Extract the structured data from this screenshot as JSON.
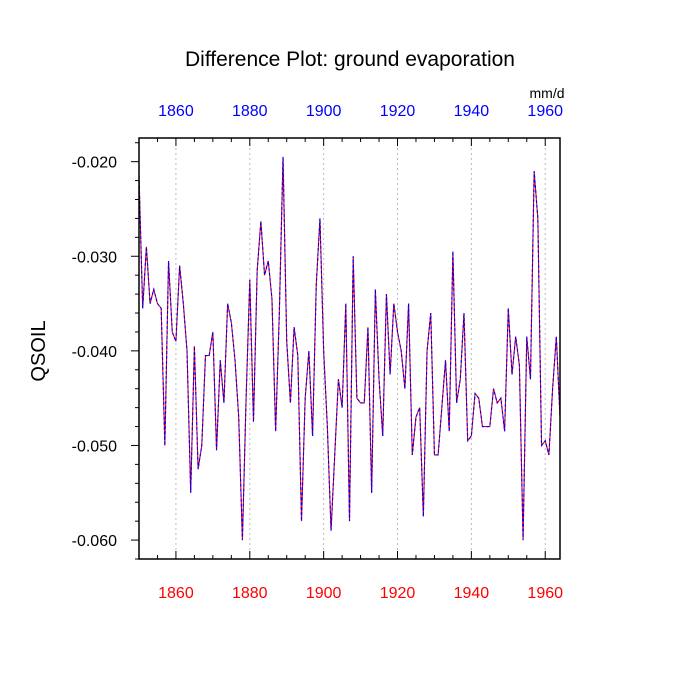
{
  "chart_data": {
    "type": "line",
    "title": "Difference Plot: ground evaporation",
    "units": "mm/d",
    "ylabel": "QSOIL",
    "xlim": [
      1850,
      1964
    ],
    "ylim": [
      -0.062,
      -0.0175
    ],
    "x_ticks": [
      1860,
      1880,
      1900,
      1920,
      1940,
      1960
    ],
    "x_tick_labels": [
      "1860",
      "1880",
      "1900",
      "1920",
      "1940",
      "1960"
    ],
    "y_ticks": [
      -0.06,
      -0.05,
      -0.04,
      -0.03,
      -0.02
    ],
    "y_tick_labels": [
      "-0.060",
      "-0.050",
      "-0.040",
      "-0.030",
      "-0.020"
    ],
    "grid_x": true,
    "grid_y": false,
    "colors": {
      "series_a": "#ff0000",
      "series_b": "#0000ff",
      "top_ticks": "#0000ff",
      "bottom_ticks": "#ff0000",
      "grid": "#bbbbbb"
    },
    "series": [
      {
        "x": [
          1850,
          1851,
          1852,
          1853,
          1854,
          1855,
          1856,
          1857,
          1858,
          1859,
          1860,
          1861,
          1862,
          1863,
          1864,
          1865,
          1866,
          1867,
          1868,
          1869,
          1870,
          1871,
          1872,
          1873,
          1874,
          1875,
          1876,
          1877,
          1878,
          1879,
          1880,
          1881,
          1882,
          1883,
          1884,
          1885,
          1886,
          1887,
          1888,
          1889,
          1890,
          1891,
          1892,
          1893,
          1894,
          1895,
          1896,
          1897,
          1898,
          1899,
          1900,
          1901,
          1902,
          1903,
          1904,
          1905,
          1906,
          1907,
          1908,
          1909,
          1910,
          1911,
          1912,
          1913,
          1914,
          1915,
          1916,
          1917,
          1918,
          1919,
          1920,
          1921,
          1922,
          1923,
          1924,
          1925,
          1926,
          1927,
          1928,
          1929,
          1930,
          1931,
          1932,
          1933,
          1934,
          1935,
          1936,
          1937,
          1938,
          1939,
          1940,
          1941,
          1942,
          1943,
          1944,
          1945,
          1946,
          1947,
          1948,
          1949,
          1950,
          1951,
          1952,
          1953,
          1954,
          1955,
          1956,
          1957,
          1958,
          1959,
          1960,
          1961,
          1962,
          1963,
          1964
        ],
        "y": [
          -0.0215,
          -0.0355,
          -0.029,
          -0.035,
          -0.0335,
          -0.035,
          -0.0355,
          -0.05,
          -0.0305,
          -0.038,
          -0.039,
          -0.031,
          -0.035,
          -0.04,
          -0.055,
          -0.0395,
          -0.0525,
          -0.05,
          -0.0405,
          -0.0405,
          -0.038,
          -0.0505,
          -0.041,
          -0.0455,
          -0.035,
          -0.037,
          -0.041,
          -0.047,
          -0.06,
          -0.045,
          -0.0325,
          -0.0475,
          -0.0315,
          -0.0263,
          -0.032,
          -0.0305,
          -0.0345,
          -0.0485,
          -0.036,
          -0.0195,
          -0.039,
          -0.0455,
          -0.0375,
          -0.0405,
          -0.058,
          -0.045,
          -0.04,
          -0.049,
          -0.033,
          -0.026,
          -0.04,
          -0.048,
          -0.059,
          -0.051,
          -0.043,
          -0.046,
          -0.035,
          -0.058,
          -0.03,
          -0.045,
          -0.0455,
          -0.0455,
          -0.0375,
          -0.055,
          -0.0335,
          -0.043,
          -0.049,
          -0.034,
          -0.0425,
          -0.035,
          -0.038,
          -0.04,
          -0.044,
          -0.035,
          -0.051,
          -0.047,
          -0.046,
          -0.0575,
          -0.04,
          -0.036,
          -0.051,
          -0.051,
          -0.046,
          -0.041,
          -0.0485,
          -0.0295,
          -0.0455,
          -0.043,
          -0.036,
          -0.0495,
          -0.049,
          -0.0445,
          -0.045,
          -0.048,
          -0.048,
          -0.048,
          -0.044,
          -0.0455,
          -0.045,
          -0.0485,
          -0.0355,
          -0.0425,
          -0.0385,
          -0.0415,
          -0.06,
          -0.0385,
          -0.043,
          -0.021,
          -0.026,
          -0.05,
          -0.0495,
          -0.051,
          -0.044,
          -0.0385,
          -0.047
        ]
      },
      {
        "x": [
          1850,
          1851,
          1852,
          1853,
          1854,
          1855,
          1856,
          1857,
          1858,
          1859,
          1860,
          1861,
          1862,
          1863,
          1864,
          1865,
          1866,
          1867,
          1868,
          1869,
          1870,
          1871,
          1872,
          1873,
          1874,
          1875,
          1876,
          1877,
          1878,
          1879,
          1880,
          1881,
          1882,
          1883,
          1884,
          1885,
          1886,
          1887,
          1888,
          1889,
          1890,
          1891,
          1892,
          1893,
          1894,
          1895,
          1896,
          1897,
          1898,
          1899,
          1900,
          1901,
          1902,
          1903,
          1904,
          1905,
          1906,
          1907,
          1908,
          1909,
          1910,
          1911,
          1912,
          1913,
          1914,
          1915,
          1916,
          1917,
          1918,
          1919,
          1920,
          1921,
          1922,
          1923,
          1924,
          1925,
          1926,
          1927,
          1928,
          1929,
          1930,
          1931,
          1932,
          1933,
          1934,
          1935,
          1936,
          1937,
          1938,
          1939,
          1940,
          1941,
          1942,
          1943,
          1944,
          1945,
          1946,
          1947,
          1948,
          1949,
          1950,
          1951,
          1952,
          1953,
          1954,
          1955,
          1956,
          1957,
          1958,
          1959,
          1960,
          1961,
          1962,
          1963,
          1964
        ],
        "y": [
          -0.0215,
          -0.0355,
          -0.029,
          -0.035,
          -0.0335,
          -0.035,
          -0.0355,
          -0.05,
          -0.0305,
          -0.038,
          -0.039,
          -0.031,
          -0.035,
          -0.04,
          -0.055,
          -0.0395,
          -0.0525,
          -0.05,
          -0.0405,
          -0.0405,
          -0.038,
          -0.0505,
          -0.041,
          -0.0455,
          -0.035,
          -0.037,
          -0.041,
          -0.047,
          -0.06,
          -0.045,
          -0.0325,
          -0.0475,
          -0.0315,
          -0.0263,
          -0.032,
          -0.0305,
          -0.0345,
          -0.0485,
          -0.036,
          -0.0195,
          -0.039,
          -0.0455,
          -0.0375,
          -0.0405,
          -0.058,
          -0.045,
          -0.04,
          -0.049,
          -0.033,
          -0.026,
          -0.04,
          -0.048,
          -0.059,
          -0.051,
          -0.043,
          -0.046,
          -0.035,
          -0.058,
          -0.03,
          -0.045,
          -0.0455,
          -0.0455,
          -0.0375,
          -0.055,
          -0.0335,
          -0.043,
          -0.049,
          -0.034,
          -0.0425,
          -0.035,
          -0.038,
          -0.04,
          -0.044,
          -0.035,
          -0.051,
          -0.047,
          -0.046,
          -0.0575,
          -0.04,
          -0.036,
          -0.051,
          -0.051,
          -0.046,
          -0.041,
          -0.0485,
          -0.0295,
          -0.0455,
          -0.043,
          -0.036,
          -0.0495,
          -0.049,
          -0.0445,
          -0.045,
          -0.048,
          -0.048,
          -0.048,
          -0.044,
          -0.0455,
          -0.045,
          -0.0485,
          -0.0355,
          -0.0425,
          -0.0385,
          -0.0415,
          -0.06,
          -0.0385,
          -0.043,
          -0.021,
          -0.026,
          -0.05,
          -0.0495,
          -0.051,
          -0.044,
          -0.0385,
          -0.047
        ]
      }
    ]
  }
}
